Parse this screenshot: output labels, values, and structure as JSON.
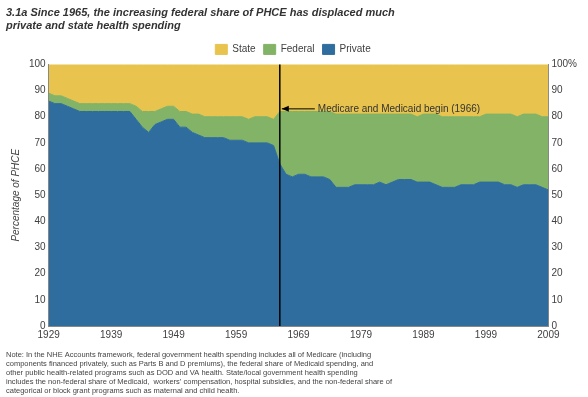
{
  "chart_data": {
    "type": "area",
    "stacked": true,
    "title": "3.1a Since 1965, the increasing federal share of PHCE has displaced much\nprivate and state health spending",
    "y_label": "Percentage of PHCE",
    "note": "Note: In the NHE Accounts framework, federal government health spending includes all of Medicare (including\ncomponents financed privately, such as Parts B and D premiums), the federal share of Medicaid spending, and\nother public health-related programs such as DOD and VA health. State/local government health spending\nincludes the non-federal share of Medicaid,  workers’ compensation, hospital subsidies, and the non-federal share of\ncategorical or block grant programs such as maternal and child health.",
    "x": [
      1929,
      1930,
      1931,
      1932,
      1933,
      1934,
      1935,
      1936,
      1937,
      1938,
      1939,
      1940,
      1941,
      1942,
      1943,
      1944,
      1945,
      1946,
      1947,
      1948,
      1949,
      1950,
      1951,
      1952,
      1953,
      1954,
      1955,
      1956,
      1957,
      1958,
      1959,
      1960,
      1961,
      1962,
      1963,
      1964,
      1965,
      1966,
      1967,
      1968,
      1969,
      1970,
      1971,
      1972,
      1973,
      1974,
      1975,
      1976,
      1977,
      1978,
      1979,
      1980,
      1981,
      1982,
      1983,
      1984,
      1985,
      1986,
      1987,
      1988,
      1989,
      1990,
      1991,
      1992,
      1993,
      1994,
      1995,
      1996,
      1997,
      1998,
      1999,
      2000,
      2001,
      2002,
      2003,
      2004,
      2005,
      2006,
      2007,
      2008,
      2009
    ],
    "series": [
      {
        "name": "Private",
        "color": "#2e6d9e",
        "values": [
          86,
          85,
          85,
          84,
          83,
          82,
          82,
          82,
          82,
          82,
          82,
          82,
          82,
          82,
          79,
          76,
          74,
          77,
          78,
          79,
          79,
          76,
          76,
          74,
          73,
          72,
          72,
          72,
          72,
          71,
          71,
          71,
          70,
          70,
          70,
          70,
          69,
          62,
          58,
          57,
          58,
          58,
          57,
          57,
          57,
          56,
          53,
          53,
          53,
          54,
          54,
          54,
          54,
          55,
          54,
          55,
          56,
          56,
          56,
          55,
          55,
          55,
          54,
          53,
          53,
          53,
          54,
          54,
          54,
          55,
          55,
          55,
          55,
          54,
          54,
          53,
          54,
          54,
          54,
          53,
          52
        ]
      },
      {
        "name": "Federal",
        "color": "#82b366",
        "values": [
          3,
          3,
          3,
          3,
          3,
          3,
          3,
          3,
          3,
          3,
          3,
          3,
          3,
          3,
          5,
          6,
          8,
          5,
          5,
          5,
          5,
          6,
          6,
          7,
          8,
          8,
          8,
          8,
          8,
          9,
          9,
          9,
          9,
          10,
          10,
          10,
          10,
          20,
          24,
          25,
          24,
          24,
          25,
          25,
          25,
          26,
          28,
          28,
          28,
          27,
          27,
          27,
          27,
          26,
          27,
          26,
          25,
          25,
          25,
          25,
          26,
          26,
          27,
          27,
          27,
          27,
          26,
          26,
          26,
          25,
          26,
          26,
          26,
          27,
          27,
          27,
          27,
          27,
          27,
          27,
          28
        ]
      },
      {
        "name": "State",
        "color": "#e8c44e",
        "values": [
          11,
          12,
          12,
          13,
          14,
          15,
          15,
          15,
          15,
          15,
          15,
          15,
          15,
          15,
          16,
          18,
          18,
          18,
          17,
          16,
          16,
          18,
          18,
          19,
          19,
          20,
          20,
          20,
          20,
          20,
          20,
          20,
          21,
          20,
          20,
          20,
          21,
          18,
          18,
          18,
          18,
          18,
          18,
          18,
          18,
          18,
          19,
          19,
          19,
          19,
          19,
          19,
          19,
          19,
          19,
          19,
          19,
          19,
          19,
          20,
          19,
          19,
          19,
          20,
          20,
          20,
          20,
          20,
          20,
          20,
          19,
          19,
          19,
          19,
          19,
          20,
          19,
          19,
          19,
          20,
          20
        ]
      }
    ],
    "xlim": [
      1929,
      2009
    ],
    "xticks": [
      1929,
      1939,
      1949,
      1959,
      1969,
      1979,
      1989,
      1999,
      2009
    ],
    "ylim": [
      0,
      100
    ],
    "yticks": [
      0,
      10,
      20,
      30,
      40,
      50,
      60,
      70,
      80,
      90,
      100
    ],
    "y2lim": [
      0,
      100
    ],
    "y2ticks": [
      0,
      10,
      20,
      30,
      40,
      50,
      60,
      70,
      80,
      90,
      {
        "value": 100,
        "label": "100%"
      }
    ],
    "grid": "x",
    "legend": "top",
    "annotations": [
      {
        "text": "Medicare and Medicaid begin (1966)",
        "x": 1966,
        "y": 83
      }
    ]
  }
}
